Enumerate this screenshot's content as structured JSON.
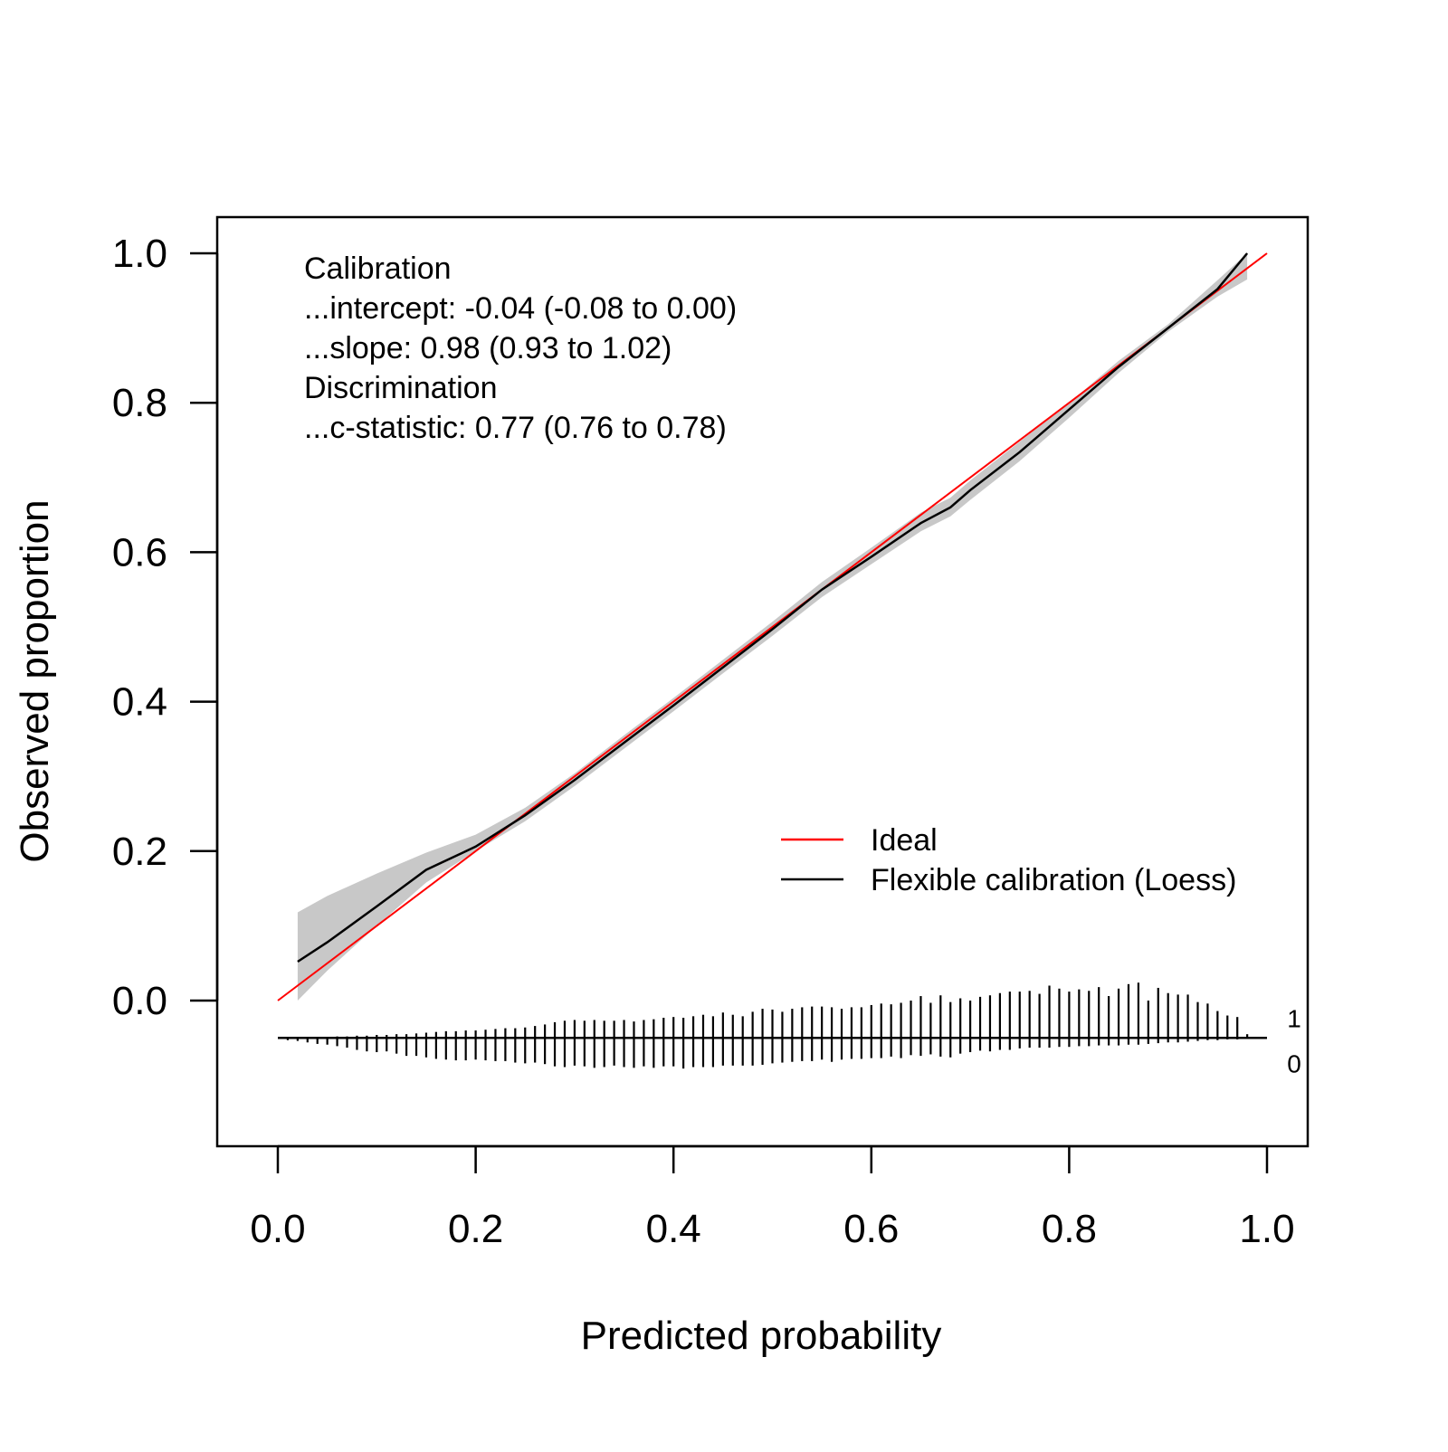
{
  "chart_data": {
    "type": "line",
    "xlabel": "Predicted probability",
    "ylabel": "Observed proportion",
    "xlim": [
      0.0,
      1.0
    ],
    "ylim": [
      0.0,
      1.0
    ],
    "x_ticks": [
      "0.0",
      "0.2",
      "0.4",
      "0.6",
      "0.8",
      "1.0"
    ],
    "y_ticks": [
      "0.0",
      "0.2",
      "0.4",
      "0.6",
      "0.8",
      "1.0"
    ],
    "grid": false,
    "annotations": [
      "Calibration",
      "...intercept: -0.04 (-0.08 to 0.00)",
      "...slope: 0.98 (0.93 to 1.02)",
      "Discrimination",
      "...c-statistic: 0.77 (0.76 to 0.78)"
    ],
    "legend": {
      "position": "bottom-right",
      "entries": [
        {
          "label": "Ideal",
          "color": "#ff0000"
        },
        {
          "label": "Flexible calibration (Loess)",
          "color": "#000000"
        }
      ]
    },
    "series": [
      {
        "label": "Ideal",
        "color": "#ff0000",
        "x": [
          0.0,
          1.0
        ],
        "y": [
          0.0,
          1.0
        ]
      },
      {
        "label": "Flexible calibration (Loess)",
        "color": "#000000",
        "x": [
          0.02,
          0.05,
          0.1,
          0.15,
          0.2,
          0.25,
          0.3,
          0.35,
          0.4,
          0.45,
          0.5,
          0.55,
          0.6,
          0.65,
          0.68,
          0.7,
          0.75,
          0.8,
          0.85,
          0.9,
          0.95,
          0.98
        ],
        "y": [
          0.052,
          0.078,
          0.126,
          0.175,
          0.206,
          0.248,
          0.295,
          0.345,
          0.395,
          0.446,
          0.497,
          0.55,
          0.594,
          0.639,
          0.66,
          0.683,
          0.734,
          0.791,
          0.848,
          0.9,
          0.952,
          1.0
        ],
        "ci_lower": [
          0.0,
          0.04,
          0.1,
          0.158,
          0.2,
          0.24,
          0.287,
          0.337,
          0.387,
          0.438,
          0.488,
          0.54,
          0.584,
          0.628,
          0.648,
          0.67,
          0.722,
          0.78,
          0.84,
          0.895,
          0.942,
          0.965
        ],
        "ci_upper": [
          0.118,
          0.14,
          0.17,
          0.198,
          0.222,
          0.258,
          0.304,
          0.355,
          0.405,
          0.456,
          0.507,
          0.56,
          0.606,
          0.653,
          0.673,
          0.696,
          0.748,
          0.8,
          0.856,
          0.905,
          0.964,
          1.0
        ]
      }
    ],
    "spike_histogram": {
      "baseline_y": -0.05,
      "labels": [
        "1",
        "0"
      ],
      "x": [
        0.01,
        0.02,
        0.03,
        0.04,
        0.05,
        0.06,
        0.07,
        0.08,
        0.09,
        0.1,
        0.11,
        0.12,
        0.13,
        0.14,
        0.15,
        0.16,
        0.17,
        0.18,
        0.19,
        0.2,
        0.21,
        0.22,
        0.23,
        0.24,
        0.25,
        0.26,
        0.27,
        0.28,
        0.29,
        0.3,
        0.31,
        0.32,
        0.33,
        0.34,
        0.35,
        0.36,
        0.37,
        0.38,
        0.39,
        0.4,
        0.41,
        0.42,
        0.43,
        0.44,
        0.45,
        0.46,
        0.47,
        0.48,
        0.49,
        0.5,
        0.51,
        0.52,
        0.53,
        0.54,
        0.55,
        0.56,
        0.57,
        0.58,
        0.59,
        0.6,
        0.61,
        0.62,
        0.63,
        0.64,
        0.65,
        0.66,
        0.67,
        0.68,
        0.69,
        0.7,
        0.71,
        0.72,
        0.73,
        0.74,
        0.75,
        0.76,
        0.77,
        0.78,
        0.79,
        0.8,
        0.81,
        0.82,
        0.83,
        0.84,
        0.85,
        0.86,
        0.87,
        0.88,
        0.89,
        0.9,
        0.91,
        0.92,
        0.93,
        0.94,
        0.95,
        0.96,
        0.97,
        0.98,
        0.99
      ],
      "events": [
        0,
        0,
        0,
        0,
        0.001,
        0.002,
        0.002,
        0.003,
        0.003,
        0.004,
        0.004,
        0.005,
        0.005,
        0.006,
        0.007,
        0.008,
        0.009,
        0.009,
        0.01,
        0.01,
        0.011,
        0.012,
        0.013,
        0.013,
        0.014,
        0.016,
        0.018,
        0.021,
        0.023,
        0.024,
        0.023,
        0.024,
        0.023,
        0.023,
        0.024,
        0.022,
        0.024,
        0.025,
        0.027,
        0.028,
        0.027,
        0.029,
        0.031,
        0.029,
        0.034,
        0.031,
        0.029,
        0.035,
        0.039,
        0.038,
        0.035,
        0.039,
        0.041,
        0.042,
        0.042,
        0.041,
        0.039,
        0.041,
        0.041,
        0.044,
        0.046,
        0.045,
        0.047,
        0.05,
        0.056,
        0.047,
        0.057,
        0.048,
        0.053,
        0.05,
        0.055,
        0.057,
        0.06,
        0.062,
        0.062,
        0.063,
        0.059,
        0.07,
        0.066,
        0.062,
        0.065,
        0.063,
        0.068,
        0.056,
        0.066,
        0.072,
        0.074,
        0.05,
        0.067,
        0.06,
        0.058,
        0.058,
        0.048,
        0.046,
        0.036,
        0.03,
        0.028,
        0.005,
        0.0
      ],
      "non_events": [
        0.003,
        0.004,
        0.006,
        0.008,
        0.009,
        0.011,
        0.013,
        0.016,
        0.018,
        0.019,
        0.018,
        0.021,
        0.024,
        0.024,
        0.026,
        0.028,
        0.029,
        0.03,
        0.03,
        0.029,
        0.03,
        0.031,
        0.031,
        0.033,
        0.034,
        0.033,
        0.035,
        0.038,
        0.039,
        0.037,
        0.038,
        0.04,
        0.039,
        0.037,
        0.039,
        0.04,
        0.038,
        0.04,
        0.038,
        0.038,
        0.041,
        0.039,
        0.039,
        0.039,
        0.037,
        0.037,
        0.037,
        0.037,
        0.036,
        0.034,
        0.033,
        0.032,
        0.031,
        0.031,
        0.029,
        0.032,
        0.029,
        0.028,
        0.028,
        0.027,
        0.027,
        0.025,
        0.027,
        0.023,
        0.024,
        0.022,
        0.025,
        0.026,
        0.021,
        0.019,
        0.017,
        0.018,
        0.016,
        0.016,
        0.014,
        0.013,
        0.013,
        0.013,
        0.012,
        0.012,
        0.011,
        0.011,
        0.01,
        0.01,
        0.01,
        0.009,
        0.009,
        0.008,
        0.007,
        0.006,
        0.006,
        0.005,
        0.004,
        0.003,
        0.003,
        0.002,
        0.002,
        0.001,
        0.0
      ]
    }
  }
}
